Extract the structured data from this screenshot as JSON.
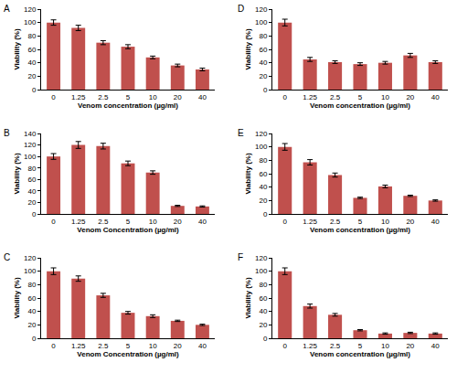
{
  "chart_data": [
    {
      "type": "bar",
      "title": "A",
      "xlabel": "Venom concentration (µg/ml)",
      "ylabel": "Viability (%)",
      "categories": [
        "0",
        "1.25",
        "2.5",
        "5",
        "10",
        "20",
        "40"
      ],
      "values": [
        100,
        92,
        70,
        64,
        48,
        36,
        30
      ],
      "errors": [
        4,
        4,
        3,
        3,
        2,
        2,
        2
      ],
      "color": "#c0504d",
      "ylim": [
        0,
        120
      ],
      "yticks": [
        0,
        20,
        40,
        60,
        80,
        100,
        120
      ],
      "grid": false
    },
    {
      "type": "bar",
      "title": "B",
      "xlabel": "Venom Concentration (µg/ml)",
      "ylabel": "Viability (%)",
      "categories": [
        "0",
        "1.25",
        "2.5",
        "5",
        "10",
        "20",
        "40"
      ],
      "values": [
        100,
        120,
        118,
        88,
        72,
        14,
        13
      ],
      "errors": [
        5,
        6,
        5,
        4,
        3,
        1,
        1
      ],
      "color": "#c0504d",
      "ylim": [
        0,
        140
      ],
      "yticks": [
        0,
        20,
        40,
        60,
        80,
        100,
        120,
        140
      ],
      "grid": false
    },
    {
      "type": "bar",
      "title": "C",
      "xlabel": "Venom Concentration (µg/ml)",
      "ylabel": "Viability (%)",
      "categories": [
        "0",
        "1.25",
        "2.5",
        "5",
        "10",
        "20",
        "40"
      ],
      "values": [
        100,
        89,
        64,
        38,
        33,
        26,
        20
      ],
      "errors": [
        5,
        4,
        3,
        2,
        2,
        1,
        1
      ],
      "color": "#c0504d",
      "ylim": [
        0,
        120
      ],
      "yticks": [
        0,
        20,
        40,
        60,
        80,
        100,
        120
      ],
      "grid": false
    },
    {
      "type": "bar",
      "title": "D",
      "xlabel": "Venom concentration (µg/ml)",
      "ylabel": "Viability (%)",
      "categories": [
        "0",
        "1.25",
        "2.5",
        "5",
        "10",
        "20",
        "40"
      ],
      "values": [
        100,
        45,
        41,
        38,
        40,
        51,
        41
      ],
      "errors": [
        5,
        3,
        2,
        2,
        2,
        3,
        2
      ],
      "color": "#c0504d",
      "ylim": [
        0,
        120
      ],
      "yticks": [
        0,
        20,
        40,
        60,
        80,
        100,
        120
      ],
      "grid": false
    },
    {
      "type": "bar",
      "title": "E",
      "xlabel": "Venom concentration (µg/ml)",
      "ylabel": "Viability (%)",
      "categories": [
        "0",
        "1.25",
        "2.5",
        "5",
        "10",
        "20",
        "40"
      ],
      "values": [
        100,
        77,
        58,
        24,
        41,
        27,
        20
      ],
      "errors": [
        5,
        4,
        3,
        1,
        2,
        1,
        1
      ],
      "color": "#c0504d",
      "ylim": [
        0,
        120
      ],
      "yticks": [
        0,
        20,
        40,
        60,
        80,
        100,
        120
      ],
      "grid": false
    },
    {
      "type": "bar",
      "title": "F",
      "xlabel": "Venom concentration (µg/ml)",
      "ylabel": "Viability (%)",
      "categories": [
        "0",
        "1.25",
        "2.5",
        "5",
        "10",
        "20",
        "40"
      ],
      "values": [
        100,
        48,
        35,
        12,
        7,
        8,
        7
      ],
      "errors": [
        5,
        3,
        2,
        1,
        1,
        1,
        1
      ],
      "color": "#c0504d",
      "ylim": [
        0,
        120
      ],
      "yticks": [
        0,
        20,
        40,
        60,
        80,
        100,
        120
      ],
      "grid": false
    }
  ]
}
